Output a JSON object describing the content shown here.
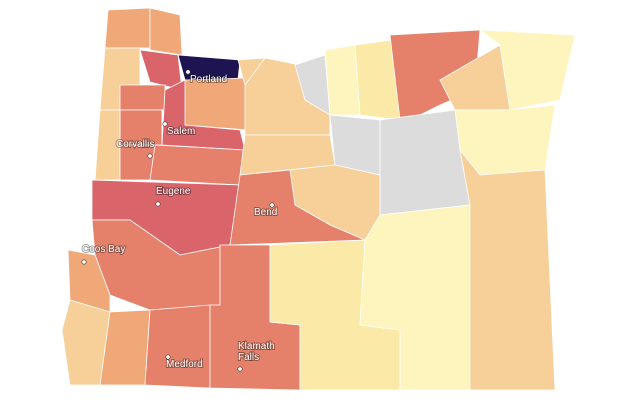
{
  "map": {
    "cities": [
      {
        "lines": [
          "Portland"
        ]
      },
      {
        "lines": [
          "Salem"
        ]
      },
      {
        "lines": [
          "Corvallis"
        ]
      },
      {
        "lines": [
          "Eugene"
        ]
      },
      {
        "lines": [
          "Bend"
        ]
      },
      {
        "lines": [
          "Coos Bay"
        ]
      },
      {
        "lines": [
          "Medford"
        ]
      },
      {
        "lines": [
          "Klamath",
          "Falls"
        ]
      }
    ]
  }
}
